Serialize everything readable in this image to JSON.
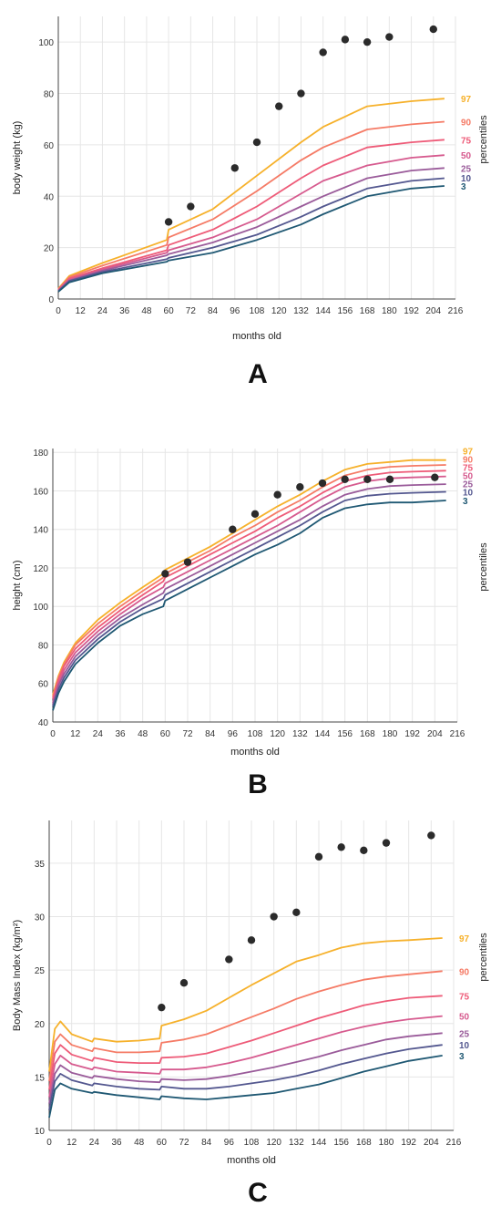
{
  "percentile_colors": {
    "97": "#f6b12b",
    "90": "#f57b66",
    "75": "#ee5b78",
    "50": "#d65a8e",
    "25": "#9a5b9a",
    "10": "#53578f",
    "3": "#1f5873"
  },
  "point_color": "#2b2b2b",
  "chart_data": [
    {
      "type": "line",
      "panel_label": "A",
      "xlabel": "months old",
      "ylabel": "body weight (kg)",
      "legend_title": "percentiles",
      "xlim": [
        0,
        216
      ],
      "ylim": [
        0,
        110
      ],
      "xticks": [
        0,
        12,
        24,
        36,
        48,
        60,
        72,
        84,
        96,
        108,
        120,
        132,
        144,
        156,
        168,
        180,
        192,
        204,
        216
      ],
      "yticks": [
        0,
        20,
        40,
        60,
        80,
        100
      ],
      "grid": true,
      "series": [
        {
          "name": "97",
          "x": [
            0,
            6,
            24,
            59,
            60,
            84,
            108,
            132,
            144,
            168,
            192,
            210
          ],
          "y": [
            4,
            9,
            14,
            23,
            27,
            35,
            48,
            61,
            67,
            75,
            77,
            78
          ]
        },
        {
          "name": "90",
          "x": [
            0,
            6,
            24,
            59,
            60,
            84,
            108,
            132,
            144,
            168,
            192,
            210
          ],
          "y": [
            3.8,
            8.5,
            13,
            21,
            24,
            31,
            42,
            54,
            59,
            66,
            68,
            69
          ]
        },
        {
          "name": "75",
          "x": [
            0,
            6,
            24,
            59,
            60,
            84,
            108,
            132,
            144,
            168,
            192,
            210
          ],
          "y": [
            3.6,
            8,
            12,
            19,
            21,
            27,
            36,
            47,
            52,
            59,
            61,
            62
          ]
        },
        {
          "name": "50",
          "x": [
            0,
            6,
            24,
            59,
            60,
            84,
            108,
            132,
            144,
            168,
            192,
            210
          ],
          "y": [
            3.4,
            7.5,
            11.5,
            18,
            19,
            24,
            31,
            41,
            46,
            52,
            55,
            56
          ]
        },
        {
          "name": "25",
          "x": [
            0,
            6,
            24,
            59,
            60,
            84,
            108,
            132,
            144,
            168,
            192,
            210
          ],
          "y": [
            3.2,
            7.2,
            11,
            17,
            17.5,
            22,
            28,
            36,
            40,
            47,
            50,
            51
          ]
        },
        {
          "name": "10",
          "x": [
            0,
            6,
            24,
            59,
            60,
            84,
            108,
            132,
            144,
            168,
            192,
            210
          ],
          "y": [
            3,
            7,
            10.5,
            15.5,
            16,
            20,
            25,
            32,
            36,
            43,
            46,
            47
          ]
        },
        {
          "name": "3",
          "x": [
            0,
            6,
            24,
            59,
            60,
            84,
            108,
            132,
            144,
            168,
            192,
            210
          ],
          "y": [
            2.8,
            6.5,
            10,
            14.5,
            15,
            18,
            23,
            29,
            33,
            40,
            43,
            44
          ]
        }
      ],
      "points": {
        "x": [
          60,
          72,
          96,
          108,
          120,
          132,
          144,
          156,
          168,
          180,
          204
        ],
        "y": [
          30,
          36,
          51,
          61,
          75,
          80,
          96,
          101,
          100,
          102,
          105
        ]
      }
    },
    {
      "type": "line",
      "panel_label": "B",
      "xlabel": "months old",
      "ylabel": "height (cm)",
      "legend_title": "percentiles",
      "xlim": [
        0,
        216
      ],
      "ylim": [
        40,
        182
      ],
      "xticks": [
        0,
        12,
        24,
        36,
        48,
        60,
        72,
        84,
        96,
        108,
        120,
        132,
        144,
        156,
        168,
        180,
        192,
        204,
        216
      ],
      "yticks": [
        40,
        60,
        80,
        100,
        120,
        140,
        160,
        180
      ],
      "grid": true,
      "series": [
        {
          "name": "97",
          "x": [
            0,
            3,
            6,
            12,
            24,
            36,
            48,
            59,
            60,
            72,
            84,
            96,
            108,
            120,
            132,
            144,
            156,
            168,
            180,
            192,
            210
          ],
          "y": [
            54,
            64,
            71,
            81,
            93,
            102,
            110,
            117,
            119,
            125,
            131,
            138,
            145,
            152,
            158,
            165,
            171,
            174,
            175,
            176,
            176
          ]
        },
        {
          "name": "90",
          "x": [
            0,
            3,
            6,
            12,
            24,
            36,
            48,
            59,
            60,
            72,
            84,
            96,
            108,
            120,
            132,
            144,
            156,
            168,
            180,
            192,
            210
          ],
          "y": [
            53,
            63,
            70,
            80,
            91,
            100,
            108,
            115,
            117,
            123,
            129,
            136,
            142,
            149,
            155,
            162,
            168,
            171,
            172.5,
            173,
            173.5
          ]
        },
        {
          "name": "75",
          "x": [
            0,
            3,
            6,
            12,
            24,
            36,
            48,
            59,
            60,
            72,
            84,
            96,
            108,
            120,
            132,
            144,
            156,
            168,
            180,
            192,
            210
          ],
          "y": [
            52,
            62,
            69,
            78,
            89,
            98,
            106,
            113,
            115,
            121,
            127,
            133,
            139,
            146,
            152,
            159,
            165,
            168,
            169.5,
            170,
            170.5
          ]
        },
        {
          "name": "50",
          "x": [
            0,
            3,
            6,
            12,
            24,
            36,
            48,
            59,
            60,
            72,
            84,
            96,
            108,
            120,
            132,
            144,
            156,
            168,
            180,
            192,
            210
          ],
          "y": [
            50,
            60,
            67,
            76,
            87,
            96,
            104,
            110,
            112,
            118,
            124,
            130,
            136,
            142,
            149,
            156,
            162,
            165,
            166.5,
            167,
            167.5
          ]
        },
        {
          "name": "25",
          "x": [
            0,
            3,
            6,
            12,
            24,
            36,
            48,
            59,
            60,
            72,
            84,
            96,
            108,
            120,
            132,
            144,
            156,
            168,
            180,
            192,
            210
          ],
          "y": [
            49,
            59,
            65,
            74,
            85,
            94,
            101,
            107,
            109,
            115,
            121,
            127,
            133,
            139,
            145,
            152,
            158,
            161,
            162.5,
            163,
            163.5
          ]
        },
        {
          "name": "10",
          "x": [
            0,
            3,
            6,
            12,
            24,
            36,
            48,
            59,
            60,
            72,
            84,
            96,
            108,
            120,
            132,
            144,
            156,
            168,
            180,
            192,
            210
          ],
          "y": [
            48,
            57,
            63,
            72,
            83,
            92,
            99,
            104,
            106,
            112,
            118,
            124,
            130,
            136,
            142,
            149,
            155,
            157.5,
            158.5,
            159,
            159.5
          ]
        },
        {
          "name": "3",
          "x": [
            0,
            3,
            6,
            12,
            24,
            36,
            48,
            59,
            60,
            72,
            84,
            96,
            108,
            120,
            132,
            144,
            156,
            168,
            180,
            192,
            210
          ],
          "y": [
            46,
            55,
            61,
            70,
            81,
            90,
            96,
            100,
            103,
            109,
            115,
            121,
            127,
            132,
            138,
            146,
            151,
            153,
            154,
            154,
            155
          ]
        }
      ],
      "points": {
        "x": [
          60,
          72,
          96,
          108,
          120,
          132,
          144,
          156,
          168,
          180,
          204
        ],
        "y": [
          117,
          123,
          140,
          148,
          158,
          162,
          164,
          166,
          166,
          166,
          167
        ]
      }
    },
    {
      "type": "line",
      "panel_label": "C",
      "xlabel": "months old",
      "ylabel": "Body Mass Index (kg/m²)",
      "legend_title": "percentiles",
      "xlim": [
        0,
        216
      ],
      "ylim": [
        10,
        39
      ],
      "xticks": [
        0,
        12,
        24,
        36,
        48,
        60,
        72,
        84,
        96,
        108,
        120,
        132,
        144,
        156,
        168,
        180,
        192,
        204,
        216
      ],
      "yticks": [
        10,
        15,
        20,
        25,
        30,
        35
      ],
      "grid": true,
      "series": [
        {
          "name": "97",
          "x": [
            0,
            3,
            6,
            12,
            23,
            24,
            36,
            48,
            59,
            60,
            72,
            84,
            96,
            108,
            120,
            132,
            144,
            156,
            168,
            180,
            192,
            210
          ],
          "y": [
            15.5,
            19.5,
            20.2,
            19,
            18.3,
            18.6,
            18.3,
            18.4,
            18.6,
            19.8,
            20.4,
            21.2,
            22.4,
            23.6,
            24.7,
            25.8,
            26.4,
            27.1,
            27.5,
            27.7,
            27.8,
            28
          ]
        },
        {
          "name": "90",
          "x": [
            0,
            3,
            6,
            12,
            23,
            24,
            36,
            48,
            59,
            60,
            72,
            84,
            96,
            108,
            120,
            132,
            144,
            156,
            168,
            180,
            192,
            210
          ],
          "y": [
            14.6,
            18.3,
            19,
            18,
            17.4,
            17.7,
            17.3,
            17.3,
            17.4,
            18.2,
            18.5,
            19,
            19.8,
            20.6,
            21.4,
            22.3,
            23,
            23.6,
            24.1,
            24.4,
            24.6,
            24.9
          ]
        },
        {
          "name": "75",
          "x": [
            0,
            3,
            6,
            12,
            23,
            24,
            36,
            48,
            59,
            60,
            72,
            84,
            96,
            108,
            120,
            132,
            144,
            156,
            168,
            180,
            192,
            210
          ],
          "y": [
            13.8,
            17.2,
            18,
            17.1,
            16.5,
            16.8,
            16.4,
            16.3,
            16.3,
            16.8,
            16.9,
            17.2,
            17.8,
            18.4,
            19.1,
            19.8,
            20.5,
            21.1,
            21.7,
            22.1,
            22.4,
            22.6
          ]
        },
        {
          "name": "50",
          "x": [
            0,
            3,
            6,
            12,
            23,
            24,
            36,
            48,
            59,
            60,
            72,
            84,
            96,
            108,
            120,
            132,
            144,
            156,
            168,
            180,
            192,
            210
          ],
          "y": [
            13.1,
            16.2,
            17,
            16.2,
            15.7,
            15.9,
            15.5,
            15.4,
            15.3,
            15.7,
            15.7,
            15.9,
            16.3,
            16.8,
            17.4,
            18,
            18.6,
            19.2,
            19.7,
            20.1,
            20.4,
            20.7
          ]
        },
        {
          "name": "25",
          "x": [
            0,
            3,
            6,
            12,
            23,
            24,
            36,
            48,
            59,
            60,
            72,
            84,
            96,
            108,
            120,
            132,
            144,
            156,
            168,
            180,
            192,
            210
          ],
          "y": [
            12.5,
            15.3,
            16.1,
            15.4,
            14.9,
            15.1,
            14.8,
            14.6,
            14.5,
            14.8,
            14.7,
            14.8,
            15.1,
            15.5,
            15.9,
            16.4,
            16.9,
            17.5,
            18,
            18.5,
            18.8,
            19.1
          ]
        },
        {
          "name": "10",
          "x": [
            0,
            3,
            6,
            12,
            23,
            24,
            36,
            48,
            59,
            60,
            72,
            84,
            96,
            108,
            120,
            132,
            144,
            156,
            168,
            180,
            192,
            210
          ],
          "y": [
            11.9,
            14.6,
            15.3,
            14.7,
            14.2,
            14.4,
            14.1,
            13.9,
            13.8,
            14.1,
            13.9,
            13.9,
            14.1,
            14.4,
            14.7,
            15.1,
            15.6,
            16.2,
            16.7,
            17.2,
            17.6,
            18
          ]
        },
        {
          "name": "3",
          "x": [
            0,
            3,
            6,
            12,
            23,
            24,
            36,
            48,
            59,
            60,
            72,
            84,
            96,
            108,
            120,
            132,
            144,
            156,
            168,
            180,
            192,
            210
          ],
          "y": [
            11.2,
            13.8,
            14.4,
            13.9,
            13.5,
            13.6,
            13.3,
            13.1,
            12.9,
            13.2,
            13,
            12.9,
            13.1,
            13.3,
            13.5,
            13.9,
            14.3,
            14.9,
            15.5,
            16,
            16.5,
            17
          ]
        }
      ],
      "points": {
        "x": [
          60,
          72,
          96,
          108,
          120,
          132,
          144,
          156,
          168,
          180,
          204
        ],
        "y": [
          21.5,
          23.8,
          26,
          27.8,
          30,
          30.4,
          35.6,
          36.5,
          36.2,
          36.9,
          37.6
        ]
      }
    }
  ]
}
